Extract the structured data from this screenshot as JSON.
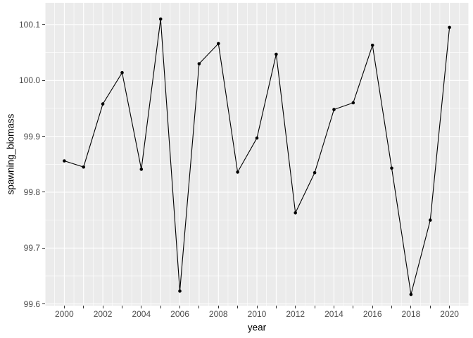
{
  "chart_data": {
    "type": "line",
    "title": "",
    "xlabel": "year",
    "ylabel": "spawning_biomass",
    "legend_position": "none",
    "grid": "on",
    "series": [
      {
        "name": "spawning_biomass",
        "marker": "filled-circle",
        "x": [
          2000,
          2001,
          2002,
          2003,
          2004,
          2005,
          2006,
          2007,
          2008,
          2009,
          2010,
          2011,
          2012,
          2013,
          2014,
          2015,
          2016,
          2017,
          2018,
          2019,
          2020
        ],
        "y": [
          99.856,
          99.845,
          99.958,
          100.014,
          99.841,
          100.11,
          99.623,
          100.03,
          100.066,
          99.836,
          99.897,
          100.047,
          99.763,
          99.835,
          99.948,
          99.96,
          100.063,
          99.843,
          99.617,
          99.75,
          100.095
        ]
      }
    ],
    "xlim": [
      1999,
      2021
    ],
    "ylim": [
      99.597,
      100.139
    ],
    "x_ticks": [
      2000,
      2001,
      2002,
      2003,
      2004,
      2005,
      2006,
      2007,
      2008,
      2009,
      2010,
      2011,
      2012,
      2013,
      2014,
      2015,
      2016,
      2017,
      2018,
      2019,
      2020
    ],
    "x_labeled_ticks": [
      2000,
      2002,
      2004,
      2006,
      2008,
      2010,
      2012,
      2014,
      2016,
      2018,
      2020
    ],
    "x_tick_labels": [
      "2000",
      "2002",
      "2004",
      "2006",
      "2008",
      "2010",
      "2012",
      "2014",
      "2016",
      "2018",
      "2020"
    ],
    "y_ticks": [
      99.6,
      99.7,
      99.8,
      99.9,
      100.0,
      100.1
    ],
    "y_tick_labels": [
      "99.6",
      "99.7",
      "99.8",
      "99.9",
      "100.0",
      "100.1"
    ],
    "x_minor_step": 0.5,
    "y_minor_step": 0.05,
    "colors": {
      "panel_bg": "#EBEBEB",
      "grid_major": "#FFFFFF",
      "grid_minor": "#FFFFFF",
      "line": "#000000",
      "point": "#000000",
      "tick_label": "#4D4D4D",
      "axis_title": "#000000",
      "tick_mark": "#333333",
      "figure_bg": "#FFFFFF"
    }
  }
}
